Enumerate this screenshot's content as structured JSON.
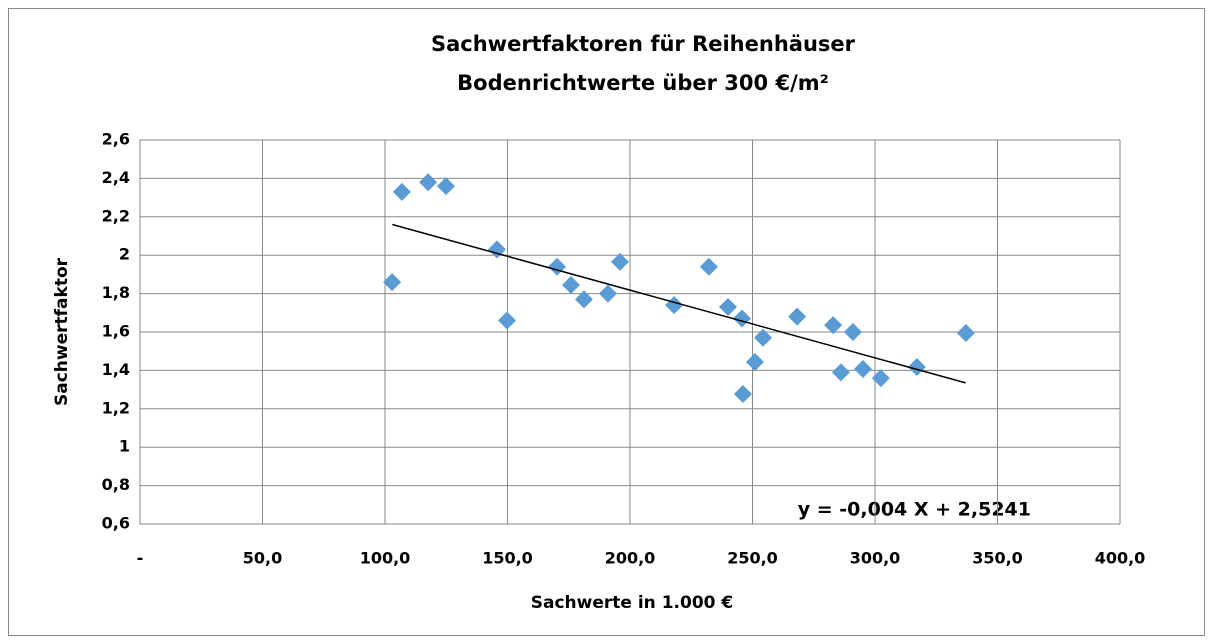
{
  "chart_data": {
    "type": "scatter",
    "title": "Sachwertfaktoren für Reihenhäuser",
    "subtitle": "Bodenrichtwerte über 300 €/m²",
    "x_label": "Sachwerte in 1.000 €",
    "y_label": "Sachwertfaktor",
    "annotation": "y = -0,004 X + 2,5241",
    "color": "#5b9bd5",
    "grid": true,
    "x": [
      102.9,
      106.9,
      117.6,
      124.9,
      145.7,
      149.8,
      170.2,
      175.9,
      181.2,
      191,
      195.9,
      218,
      232.2,
      240,
      245.7,
      246.1,
      251,
      254.3,
      268.2,
      282.9,
      286.1,
      291,
      295.1,
      302.4,
      317.1,
      337.1
    ],
    "values": [
      1.86,
      2.33,
      2.38,
      2.36,
      2.03,
      1.66,
      1.94,
      1.845,
      1.77,
      1.8,
      1.965,
      1.74,
      1.94,
      1.73,
      1.67,
      1.277,
      1.444,
      1.57,
      1.68,
      1.636,
      1.39,
      1.6,
      1.407,
      1.36,
      1.418,
      1.595
    ],
    "trendline": {
      "x": [
        103,
        337
      ],
      "values": [
        2.16,
        1.335
      ],
      "color": "#000000"
    },
    "xlim": [
      0,
      400
    ],
    "xticks": [
      {
        "value": 0,
        "label": "-"
      },
      {
        "value": 50,
        "label": "50,0"
      },
      {
        "value": 100,
        "label": "100,0"
      },
      {
        "value": 150,
        "label": "150,0"
      },
      {
        "value": 200,
        "label": "200,0"
      },
      {
        "value": 250,
        "label": "250,0"
      },
      {
        "value": 300,
        "label": "300,0"
      },
      {
        "value": 350,
        "label": "350,0"
      },
      {
        "value": 400,
        "label": "400,0"
      }
    ],
    "ylim": [
      0.6,
      2.6
    ],
    "yticks": [
      {
        "value": 0.6,
        "label": "0,6"
      },
      {
        "value": 0.8,
        "label": "0,8"
      },
      1,
      {
        "value": 1.2,
        "label": "1,2"
      },
      {
        "value": 1.4,
        "label": "1,4"
      },
      {
        "value": 1.6,
        "label": "1,6"
      },
      {
        "value": 1.8,
        "label": "1,8"
      },
      2,
      {
        "value": 2.2,
        "label": "2,2"
      },
      {
        "value": 2.4,
        "label": "2,4"
      },
      {
        "value": 2.6,
        "label": "2,6"
      }
    ]
  }
}
